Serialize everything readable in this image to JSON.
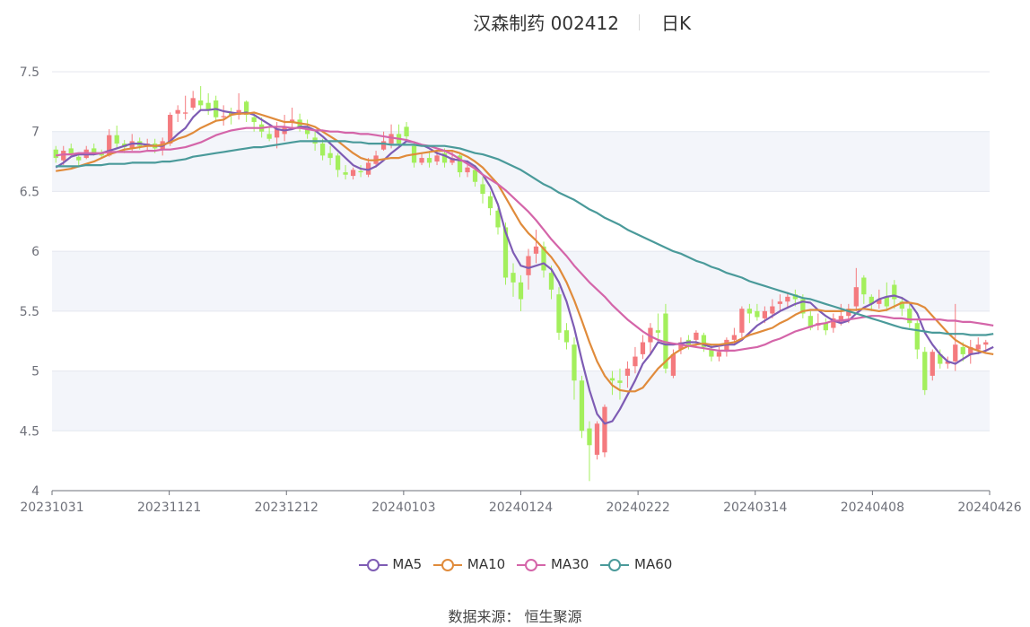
{
  "title": {
    "main": "汉森制药 002412",
    "period": "日K"
  },
  "source_label": "数据来源：  恒生聚源",
  "colors": {
    "up": "#f47a7e",
    "down": "#a3ef5c",
    "band": "#f3f5fa",
    "grid": "#e4e7ef",
    "axis": "#6e7079",
    "text": "#6e7079"
  },
  "chart_data": {
    "type": "candlestick",
    "ylim": [
      4,
      7.5
    ],
    "y_ticks": [
      "4",
      "4.5",
      "5",
      "5.5",
      "6",
      "6.5",
      "7",
      "7.5"
    ],
    "x_ticks": [
      "20231031",
      "20231121",
      "20231212",
      "20240103",
      "20240124",
      "20240222",
      "20240314",
      "20240408",
      "20240426"
    ],
    "grid": true,
    "legend_position": "bottom",
    "candles": [
      [
        6.85,
        6.78,
        6.88,
        6.74
      ],
      [
        6.76,
        6.84,
        6.88,
        6.72
      ],
      [
        6.86,
        6.81,
        6.9,
        6.79
      ],
      [
        6.79,
        6.76,
        6.82,
        6.7
      ],
      [
        6.78,
        6.85,
        6.88,
        6.77
      ],
      [
        6.86,
        6.82,
        6.9,
        6.8
      ],
      [
        6.82,
        6.8,
        6.85,
        6.78
      ],
      [
        6.8,
        6.97,
        7.02,
        6.79
      ],
      [
        6.97,
        6.9,
        7.05,
        6.86
      ],
      [
        6.9,
        6.87,
        6.93,
        6.82
      ],
      [
        6.86,
        6.92,
        6.98,
        6.84
      ],
      [
        6.92,
        6.88,
        6.95,
        6.85
      ],
      [
        6.88,
        6.9,
        6.94,
        6.84
      ],
      [
        6.9,
        6.86,
        6.94,
        6.82
      ],
      [
        6.85,
        6.92,
        6.95,
        6.8
      ],
      [
        6.9,
        7.14,
        7.16,
        6.88
      ],
      [
        7.15,
        7.18,
        7.22,
        7.08
      ],
      [
        7.15,
        7.16,
        7.3,
        7.1
      ],
      [
        7.2,
        7.28,
        7.34,
        7.18
      ],
      [
        7.26,
        7.22,
        7.38,
        7.18
      ],
      [
        7.24,
        7.18,
        7.32,
        7.14
      ],
      [
        7.26,
        7.12,
        7.3,
        7.08
      ],
      [
        7.12,
        7.13,
        7.22,
        7.05
      ],
      [
        7.16,
        7.14,
        7.2,
        7.06
      ],
      [
        7.14,
        7.18,
        7.32,
        7.1
      ],
      [
        7.25,
        7.14,
        7.26,
        7.08
      ],
      [
        7.12,
        7.08,
        7.16,
        7.0
      ],
      [
        7.06,
        7.0,
        7.12,
        6.95
      ],
      [
        6.98,
        6.94,
        7.04,
        6.92
      ],
      [
        6.95,
        7.02,
        7.08,
        6.86
      ],
      [
        6.98,
        7.04,
        7.14,
        6.92
      ],
      [
        7.08,
        7.1,
        7.2,
        7.02
      ],
      [
        7.1,
        7.04,
        7.15,
        7.0
      ],
      [
        7.04,
        6.98,
        7.1,
        6.94
      ],
      [
        6.95,
        6.9,
        7.0,
        6.84
      ],
      [
        6.9,
        6.8,
        6.94,
        6.76
      ],
      [
        6.82,
        6.78,
        6.88,
        6.72
      ],
      [
        6.8,
        6.68,
        6.82,
        6.62
      ],
      [
        6.66,
        6.64,
        6.72,
        6.6
      ],
      [
        6.63,
        6.68,
        6.7,
        6.6
      ],
      [
        6.67,
        6.66,
        6.72,
        6.62
      ],
      [
        6.64,
        6.74,
        6.78,
        6.62
      ],
      [
        6.73,
        6.8,
        6.84,
        6.7
      ],
      [
        6.85,
        6.92,
        7.0,
        6.84
      ],
      [
        6.9,
        6.98,
        7.06,
        6.86
      ],
      [
        6.98,
        6.9,
        7.06,
        6.88
      ],
      [
        7.04,
        6.96,
        7.08,
        6.92
      ],
      [
        6.88,
        6.74,
        6.92,
        6.7
      ],
      [
        6.74,
        6.78,
        6.82,
        6.72
      ],
      [
        6.78,
        6.74,
        6.84,
        6.7
      ],
      [
        6.75,
        6.8,
        6.84,
        6.72
      ],
      [
        6.82,
        6.74,
        6.86,
        6.7
      ],
      [
        6.74,
        6.78,
        6.84,
        6.72
      ],
      [
        6.8,
        6.66,
        6.82,
        6.62
      ],
      [
        6.66,
        6.7,
        6.76,
        6.62
      ],
      [
        6.68,
        6.58,
        6.72,
        6.54
      ],
      [
        6.56,
        6.48,
        6.62,
        6.4
      ],
      [
        6.46,
        6.36,
        6.5,
        6.3
      ],
      [
        6.34,
        6.2,
        6.36,
        6.14
      ],
      [
        6.2,
        5.78,
        6.24,
        5.72
      ],
      [
        5.82,
        5.74,
        5.9,
        5.62
      ],
      [
        5.74,
        5.6,
        5.8,
        5.5
      ],
      [
        5.8,
        5.96,
        6.02,
        5.68
      ],
      [
        5.98,
        6.04,
        6.18,
        5.9
      ],
      [
        6.04,
        5.84,
        6.08,
        5.78
      ],
      [
        5.82,
        5.68,
        5.88,
        5.6
      ],
      [
        5.64,
        5.32,
        5.7,
        5.26
      ],
      [
        5.34,
        5.24,
        5.4,
        5.18
      ],
      [
        5.22,
        4.92,
        5.28,
        4.76
      ],
      [
        4.92,
        4.5,
        4.96,
        4.44
      ],
      [
        4.52,
        4.38,
        4.58,
        4.08
      ],
      [
        4.3,
        4.56,
        4.58,
        4.26
      ],
      [
        4.32,
        4.7,
        4.72,
        4.28
      ],
      [
        4.94,
        4.92,
        5.0,
        4.8
      ],
      [
        4.92,
        4.9,
        5.02,
        4.76
      ],
      [
        4.96,
        5.02,
        5.08,
        4.86
      ],
      [
        5.04,
        5.12,
        5.2,
        4.98
      ],
      [
        5.14,
        5.24,
        5.3,
        5.1
      ],
      [
        5.24,
        5.36,
        5.4,
        5.14
      ],
      [
        5.34,
        5.32,
        5.48,
        5.26
      ],
      [
        5.48,
        5.02,
        5.56,
        4.98
      ],
      [
        4.96,
        5.14,
        5.18,
        4.94
      ],
      [
        5.18,
        5.24,
        5.28,
        5.14
      ],
      [
        5.26,
        5.22,
        5.3,
        5.18
      ],
      [
        5.26,
        5.32,
        5.34,
        5.2
      ],
      [
        5.3,
        5.2,
        5.32,
        5.16
      ],
      [
        5.18,
        5.12,
        5.22,
        5.08
      ],
      [
        5.12,
        5.16,
        5.2,
        5.08
      ],
      [
        5.16,
        5.26,
        5.28,
        5.12
      ],
      [
        5.26,
        5.3,
        5.36,
        5.22
      ],
      [
        5.32,
        5.52,
        5.54,
        5.28
      ],
      [
        5.52,
        5.48,
        5.56,
        5.4
      ],
      [
        5.5,
        5.45,
        5.56,
        5.42
      ],
      [
        5.44,
        5.5,
        5.54,
        5.4
      ],
      [
        5.48,
        5.54,
        5.6,
        5.44
      ],
      [
        5.56,
        5.58,
        5.64,
        5.5
      ],
      [
        5.58,
        5.62,
        5.66,
        5.52
      ],
      [
        5.64,
        5.6,
        5.68,
        5.54
      ],
      [
        5.6,
        5.48,
        5.64,
        5.44
      ],
      [
        5.46,
        5.36,
        5.5,
        5.34
      ],
      [
        5.38,
        5.4,
        5.48,
        5.34
      ],
      [
        5.4,
        5.34,
        5.44,
        5.3
      ],
      [
        5.36,
        5.44,
        5.48,
        5.32
      ],
      [
        5.42,
        5.46,
        5.56,
        5.38
      ],
      [
        5.46,
        5.52,
        5.56,
        5.4
      ],
      [
        5.54,
        5.7,
        5.86,
        5.5
      ],
      [
        5.78,
        5.64,
        5.8,
        5.56
      ],
      [
        5.62,
        5.56,
        5.64,
        5.5
      ],
      [
        5.56,
        5.6,
        5.68,
        5.52
      ],
      [
        5.62,
        5.54,
        5.74,
        5.5
      ],
      [
        5.72,
        5.6,
        5.76,
        5.52
      ],
      [
        5.58,
        5.52,
        5.62,
        5.46
      ],
      [
        5.52,
        5.4,
        5.56,
        5.36
      ],
      [
        5.4,
        5.18,
        5.44,
        5.1
      ],
      [
        5.16,
        4.84,
        5.2,
        4.8
      ],
      [
        4.96,
        5.16,
        5.18,
        4.92
      ],
      [
        5.14,
        5.06,
        5.18,
        5.02
      ],
      [
        5.06,
        5.08,
        5.12,
        5.02
      ],
      [
        5.08,
        5.22,
        5.56,
        5.0
      ],
      [
        5.2,
        5.14,
        5.24,
        5.08
      ],
      [
        5.14,
        5.2,
        5.26,
        5.06
      ],
      [
        5.18,
        5.22,
        5.28,
        5.14
      ],
      [
        5.22,
        5.24,
        5.26,
        5.16
      ]
    ],
    "series": [
      {
        "name": "MA5",
        "color": "#7e5cb4",
        "values": [
          6.7,
          6.74,
          6.79,
          6.81,
          6.81,
          6.81,
          6.82,
          6.84,
          6.86,
          6.88,
          6.9,
          6.9,
          6.89,
          6.88,
          6.88,
          6.92,
          6.98,
          7.03,
          7.12,
          7.18,
          7.18,
          7.19,
          7.17,
          7.16,
          7.15,
          7.16,
          7.14,
          7.1,
          7.06,
          7.02,
          7.01,
          7.02,
          7.04,
          7.04,
          7.01,
          6.96,
          6.9,
          6.84,
          6.78,
          6.72,
          6.69,
          6.68,
          6.71,
          6.76,
          6.82,
          6.87,
          6.92,
          6.91,
          6.89,
          6.86,
          6.82,
          6.8,
          6.77,
          6.76,
          6.75,
          6.71,
          6.64,
          6.54,
          6.39,
          6.16,
          5.99,
          5.88,
          5.86,
          5.88,
          5.9,
          5.85,
          5.74,
          5.58,
          5.36,
          5.09,
          4.84,
          4.64,
          4.56,
          4.58,
          4.68,
          4.8,
          4.92,
          5.06,
          5.14,
          5.24,
          5.22,
          5.22,
          5.23,
          5.24,
          5.24,
          5.22,
          5.2,
          5.21,
          5.22,
          5.22,
          5.26,
          5.32,
          5.38,
          5.42,
          5.46,
          5.5,
          5.53,
          5.56,
          5.58,
          5.57,
          5.51,
          5.46,
          5.42,
          5.4,
          5.42,
          5.48,
          5.53,
          5.56,
          5.6,
          5.62,
          5.63,
          5.61,
          5.57,
          5.48,
          5.32,
          5.22,
          5.14,
          5.08,
          5.06,
          5.1,
          5.14,
          5.15,
          5.17,
          5.2
        ]
      },
      {
        "name": "MA10",
        "color": "#e08b3b",
        "values": [
          6.67,
          6.68,
          6.69,
          6.71,
          6.73,
          6.75,
          6.78,
          6.81,
          6.83,
          6.85,
          6.86,
          6.87,
          6.88,
          6.88,
          6.89,
          6.91,
          6.94,
          6.96,
          6.99,
          7.03,
          7.06,
          7.09,
          7.1,
          7.14,
          7.15,
          7.15,
          7.16,
          7.14,
          7.12,
          7.1,
          7.08,
          7.08,
          7.07,
          7.06,
          7.04,
          7.0,
          6.96,
          6.92,
          6.87,
          6.82,
          6.78,
          6.76,
          6.76,
          6.77,
          6.78,
          6.78,
          6.8,
          6.81,
          6.82,
          6.83,
          6.84,
          6.84,
          6.84,
          6.82,
          6.79,
          6.75,
          6.7,
          6.63,
          6.56,
          6.45,
          6.34,
          6.23,
          6.15,
          6.09,
          6.02,
          5.95,
          5.86,
          5.74,
          5.59,
          5.42,
          5.24,
          5.08,
          4.96,
          4.88,
          4.84,
          4.83,
          4.83,
          4.86,
          4.94,
          5.02,
          5.08,
          5.14,
          5.18,
          5.21,
          5.22,
          5.23,
          5.22,
          5.22,
          5.23,
          5.24,
          5.27,
          5.3,
          5.32,
          5.34,
          5.36,
          5.4,
          5.43,
          5.47,
          5.5,
          5.51,
          5.51,
          5.5,
          5.5,
          5.5,
          5.51,
          5.51,
          5.52,
          5.51,
          5.5,
          5.51,
          5.54,
          5.57,
          5.57,
          5.56,
          5.53,
          5.46,
          5.39,
          5.32,
          5.26,
          5.22,
          5.19,
          5.17,
          5.15,
          5.14
        ]
      },
      {
        "name": "MA30",
        "color": "#d465a9",
        "values": [
          6.8,
          6.81,
          6.81,
          6.82,
          6.82,
          6.82,
          6.82,
          6.83,
          6.83,
          6.83,
          6.83,
          6.83,
          6.84,
          6.84,
          6.85,
          6.85,
          6.86,
          6.87,
          6.89,
          6.91,
          6.94,
          6.97,
          6.99,
          7.01,
          7.02,
          7.03,
          7.03,
          7.03,
          7.04,
          7.04,
          7.04,
          7.03,
          7.03,
          7.02,
          7.01,
          7.01,
          7.0,
          7.0,
          6.99,
          6.99,
          6.98,
          6.98,
          6.97,
          6.96,
          6.95,
          6.94,
          6.93,
          6.91,
          6.89,
          6.88,
          6.86,
          6.84,
          6.81,
          6.77,
          6.73,
          6.69,
          6.64,
          6.6,
          6.56,
          6.51,
          6.45,
          6.39,
          6.33,
          6.26,
          6.18,
          6.1,
          6.03,
          5.96,
          5.88,
          5.81,
          5.74,
          5.68,
          5.62,
          5.55,
          5.49,
          5.43,
          5.38,
          5.33,
          5.29,
          5.26,
          5.24,
          5.23,
          5.22,
          5.21,
          5.2,
          5.19,
          5.18,
          5.17,
          5.17,
          5.17,
          5.18,
          5.19,
          5.2,
          5.22,
          5.25,
          5.27,
          5.3,
          5.33,
          5.35,
          5.37,
          5.39,
          5.4,
          5.42,
          5.42,
          5.43,
          5.44,
          5.45,
          5.46,
          5.46,
          5.45,
          5.44,
          5.44,
          5.43,
          5.43,
          5.43,
          5.43,
          5.43,
          5.42,
          5.42,
          5.41,
          5.41,
          5.4,
          5.39,
          5.38
        ]
      },
      {
        "name": "MA60",
        "color": "#4a9a9a",
        "values": [
          6.71,
          6.71,
          6.71,
          6.71,
          6.72,
          6.72,
          6.72,
          6.73,
          6.73,
          6.73,
          6.74,
          6.74,
          6.74,
          6.74,
          6.75,
          6.75,
          6.76,
          6.77,
          6.79,
          6.8,
          6.81,
          6.82,
          6.83,
          6.84,
          6.85,
          6.86,
          6.87,
          6.87,
          6.88,
          6.89,
          6.9,
          6.91,
          6.92,
          6.92,
          6.92,
          6.92,
          6.92,
          6.92,
          6.92,
          6.91,
          6.91,
          6.9,
          6.9,
          6.9,
          6.89,
          6.89,
          6.89,
          6.89,
          6.88,
          6.88,
          6.88,
          6.88,
          6.87,
          6.86,
          6.84,
          6.82,
          6.81,
          6.79,
          6.77,
          6.74,
          6.71,
          6.68,
          6.64,
          6.6,
          6.56,
          6.53,
          6.49,
          6.46,
          6.43,
          6.39,
          6.35,
          6.32,
          6.28,
          6.25,
          6.22,
          6.18,
          6.15,
          6.12,
          6.09,
          6.06,
          6.03,
          6.0,
          5.98,
          5.95,
          5.92,
          5.9,
          5.87,
          5.85,
          5.82,
          5.8,
          5.78,
          5.75,
          5.73,
          5.71,
          5.69,
          5.67,
          5.65,
          5.63,
          5.61,
          5.6,
          5.58,
          5.56,
          5.54,
          5.52,
          5.5,
          5.48,
          5.46,
          5.44,
          5.42,
          5.4,
          5.38,
          5.36,
          5.35,
          5.34,
          5.33,
          5.32,
          5.32,
          5.31,
          5.31,
          5.31,
          5.3,
          5.3,
          5.3,
          5.31
        ]
      }
    ]
  }
}
